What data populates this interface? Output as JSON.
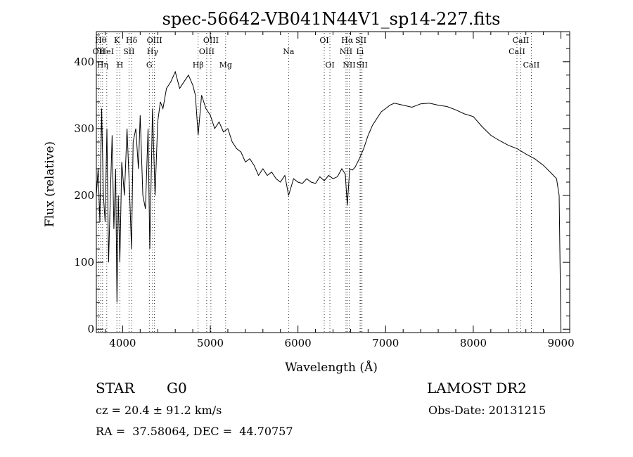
{
  "chart_data": {
    "type": "line",
    "title": "spec-56642-VB041N44V1_sp14-227.fits",
    "xlabel": "Wavelength (Å)",
    "ylabel": "Flux (relative)",
    "xlim": [
      3700,
      9100
    ],
    "ylim": [
      -5,
      445
    ],
    "x_ticks": [
      4000,
      5000,
      6000,
      7000,
      8000,
      9000
    ],
    "y_ticks": [
      0,
      100,
      200,
      300,
      400
    ],
    "x_tick_labels": [
      "4000",
      "5000",
      "6000",
      "7000",
      "8000",
      "9000"
    ],
    "y_tick_labels": [
      "0",
      "100",
      "200",
      "300",
      "400"
    ],
    "series": [
      {
        "name": "flux",
        "x": [
          3700,
          3720,
          3740,
          3760,
          3780,
          3800,
          3820,
          3840,
          3860,
          3880,
          3900,
          3920,
          3935,
          3950,
          3968,
          3990,
          4020,
          4050,
          4080,
          4101,
          4120,
          4150,
          4180,
          4200,
          4230,
          4260,
          4290,
          4310,
          4340,
          4370,
          4400,
          4430,
          4460,
          4500,
          4550,
          4600,
          4650,
          4700,
          4750,
          4800,
          4830,
          4861,
          4900,
          4950,
          5000,
          5050,
          5100,
          5150,
          5200,
          5250,
          5300,
          5350,
          5400,
          5450,
          5500,
          5550,
          5600,
          5650,
          5700,
          5750,
          5800,
          5850,
          5893,
          5950,
          6000,
          6050,
          6100,
          6150,
          6200,
          6250,
          6300,
          6350,
          6400,
          6450,
          6500,
          6540,
          6563,
          6590,
          6620,
          6650,
          6700,
          6750,
          6800,
          6850,
          6900,
          6950,
          7000,
          7050,
          7100,
          7200,
          7300,
          7400,
          7500,
          7600,
          7700,
          7800,
          7900,
          8000,
          8100,
          8200,
          8300,
          8400,
          8500,
          8600,
          8700,
          8800,
          8900,
          8950,
          8980,
          9000
        ],
        "y": [
          200,
          240,
          160,
          330,
          200,
          160,
          300,
          100,
          200,
          290,
          150,
          240,
          40,
          200,
          100,
          250,
          200,
          300,
          200,
          120,
          280,
          300,
          240,
          320,
          200,
          180,
          300,
          120,
          330,
          200,
          310,
          340,
          330,
          360,
          370,
          385,
          360,
          370,
          380,
          365,
          350,
          290,
          350,
          330,
          320,
          300,
          310,
          295,
          300,
          280,
          270,
          265,
          250,
          255,
          245,
          230,
          240,
          230,
          235,
          225,
          220,
          230,
          200,
          225,
          220,
          218,
          225,
          220,
          218,
          228,
          222,
          230,
          225,
          228,
          240,
          232,
          185,
          240,
          238,
          242,
          255,
          270,
          290,
          305,
          315,
          325,
          330,
          335,
          338,
          335,
          332,
          337,
          338,
          335,
          333,
          328,
          322,
          318,
          303,
          290,
          282,
          275,
          270,
          262,
          255,
          245,
          232,
          225,
          200,
          0
        ],
        "color": "#000000"
      }
    ],
    "line_labels": [
      {
        "label": "OII",
        "x": 3727,
        "row": 2
      },
      {
        "label": "Hθ",
        "x": 3750,
        "row": 1
      },
      {
        "label": "Hη",
        "x": 3771,
        "row": 3
      },
      {
        "label": "HeI",
        "x": 3819,
        "row": 2
      },
      {
        "label": "K",
        "x": 3934,
        "row": 1
      },
      {
        "label": "H",
        "x": 3969,
        "row": 3
      },
      {
        "label": "SII",
        "x": 4072,
        "row": 2
      },
      {
        "label": "Hδ",
        "x": 4102,
        "row": 1
      },
      {
        "label": "OIII",
        "x": 4363,
        "row": 1
      },
      {
        "label": "Hγ",
        "x": 4341,
        "row": 2
      },
      {
        "label": "G",
        "x": 4304,
        "row": 3
      },
      {
        "label": "Hβ",
        "x": 4861,
        "row": 3
      },
      {
        "label": "OIII",
        "x": 5007,
        "row": 1
      },
      {
        "label": "OIII",
        "x": 4959,
        "row": 2
      },
      {
        "label": "Mg",
        "x": 5175,
        "row": 3
      },
      {
        "label": "Na",
        "x": 5893,
        "row": 2
      },
      {
        "label": "OI",
        "x": 6300,
        "row": 1
      },
      {
        "label": "OI",
        "x": 6364,
        "row": 3
      },
      {
        "label": "Hα",
        "x": 6563,
        "row": 1
      },
      {
        "label": "NII",
        "x": 6548,
        "row": 2
      },
      {
        "label": "NII",
        "x": 6584,
        "row": 3
      },
      {
        "label": "SII",
        "x": 6717,
        "row": 1
      },
      {
        "label": "Li",
        "x": 6708,
        "row": 2
      },
      {
        "label": "SII",
        "x": 6731,
        "row": 3
      },
      {
        "label": "CaII",
        "x": 8498,
        "row": 2
      },
      {
        "label": "CaII",
        "x": 8542,
        "row": 1
      },
      {
        "label": "CaII",
        "x": 8662,
        "row": 3
      }
    ],
    "grid": false
  },
  "info": {
    "obj_class": "STAR",
    "obj_subclass": "G0",
    "survey": "LAMOST DR2",
    "redshift": "cz = 20.4 ± 91.2 km/s",
    "obs_date": "Obs-Date: 20131215",
    "coords": "RA =  37.58064, DEC =  44.70757"
  }
}
